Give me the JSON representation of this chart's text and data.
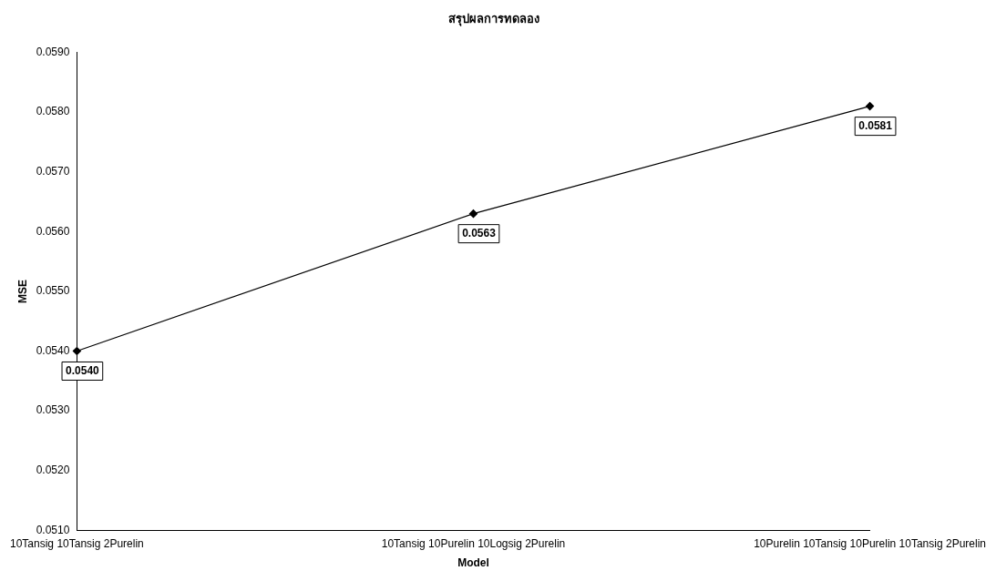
{
  "chart_data": {
    "type": "line",
    "title": "สรุปผลการทดลอง",
    "xlabel": "Model",
    "ylabel": "MSE",
    "categories": [
      "10Tansig 10Tansig 2Purelin",
      "10Tansig 10Purelin 10Logsig 2Purelin",
      "10Purelin 10Tansig 10Purelin 10Tansig 2Purelin"
    ],
    "series": [
      {
        "color": "#000000",
        "values": [
          0.054,
          0.0563,
          0.0581
        ],
        "value_labels": [
          "0.0540",
          "0.0563",
          "0.0581"
        ]
      }
    ],
    "ylim": [
      0.051,
      0.059
    ],
    "yticks": [
      {
        "value": 0.051,
        "label": "0.0510"
      },
      {
        "value": 0.052,
        "label": "0.0520"
      },
      {
        "value": 0.053,
        "label": "0.0530"
      },
      {
        "value": 0.054,
        "label": "0.0540"
      },
      {
        "value": 0.055,
        "label": "0.0550"
      },
      {
        "value": 0.056,
        "label": "0.0560"
      },
      {
        "value": 0.057,
        "label": "0.0570"
      },
      {
        "value": 0.058,
        "label": "0.0580"
      },
      {
        "value": 0.059,
        "label": "0.0590"
      }
    ],
    "grid": false,
    "legend": false,
    "marker": "diamond",
    "line_style": "solid"
  }
}
